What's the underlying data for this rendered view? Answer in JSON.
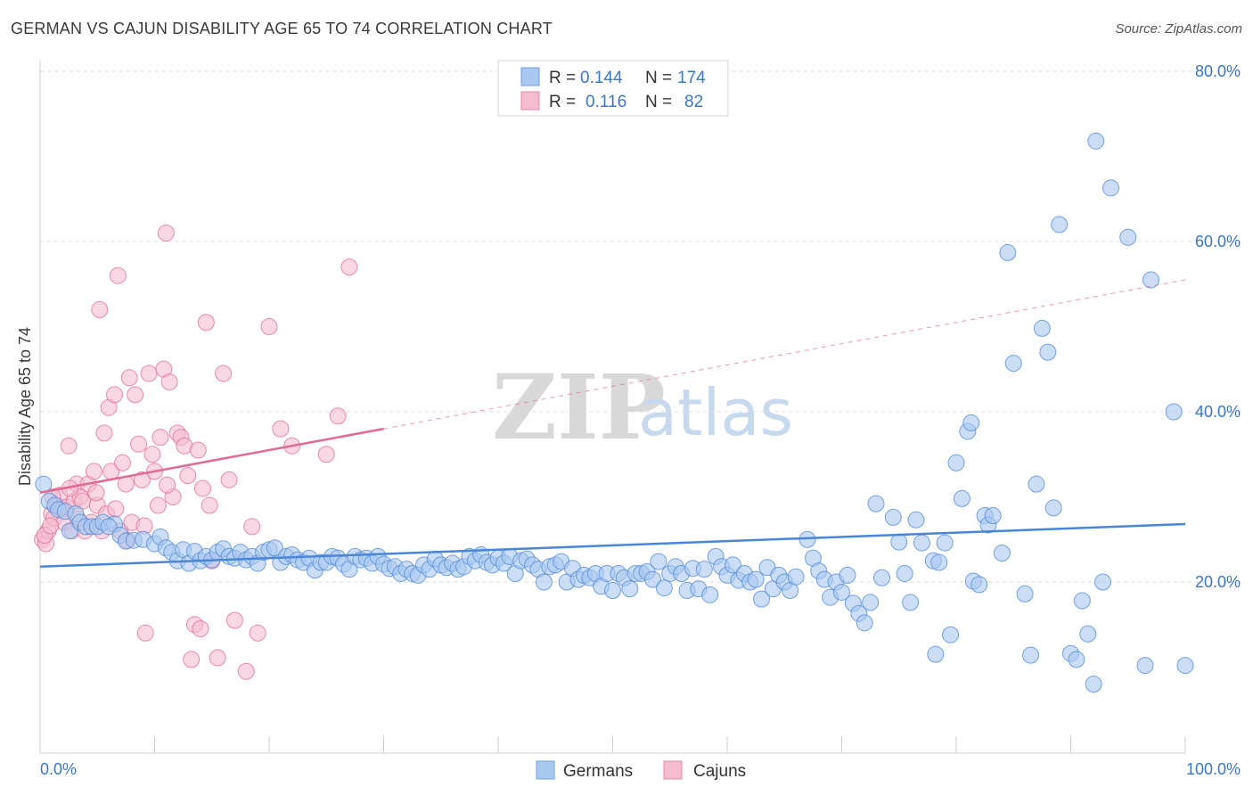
{
  "title": "GERMAN VS CAJUN DISABILITY AGE 65 TO 74 CORRELATION CHART",
  "source": "Source: ZipAtlas.com",
  "watermark": {
    "zip": "ZIP",
    "atlas": "atlas"
  },
  "legend": {
    "rows": [
      {
        "r_label": "R =",
        "r_value": "0.144",
        "n_label": "N =",
        "n_value": "174",
        "color": "#a9c8f0"
      },
      {
        "r_label": "R =",
        "r_value": "0.116",
        "n_label": "N =",
        "n_value": "82",
        "color": "#f5bcd0"
      }
    ]
  },
  "bottom_legend": [
    {
      "label": "Germans",
      "color": "#a9c8f0"
    },
    {
      "label": "Cajuns",
      "color": "#f5bcd0"
    }
  ],
  "chart_data": {
    "type": "scatter",
    "title": "GERMAN VS CAJUN DISABILITY AGE 65 TO 74 CORRELATION CHART",
    "xlabel": "",
    "ylabel": "Disability Age 65 to 74",
    "xlim": [
      0,
      100
    ],
    "ylim": [
      0,
      82
    ],
    "x_tick_labels": [
      "0.0%",
      "100.0%"
    ],
    "y_tick_labels": [
      "20.0%",
      "40.0%",
      "60.0%",
      "80.0%"
    ],
    "y_ticks": [
      20,
      40,
      60,
      80
    ],
    "grid": "horizontal dashed",
    "legend_position": "top-center",
    "series": [
      {
        "name": "Germans",
        "color": "#4a86d8",
        "fill": "#a9c8f0",
        "R": 0.144,
        "N": 174,
        "trend": {
          "x": [
            0,
            100
          ],
          "y": [
            21.8,
            26.8
          ],
          "dashed_from": null
        },
        "points": [
          [
            0.3,
            31.5
          ],
          [
            0.8,
            29.5
          ],
          [
            1.3,
            29
          ],
          [
            1.6,
            28.5
          ],
          [
            2.2,
            28.3
          ],
          [
            2.6,
            26
          ],
          [
            3.1,
            28
          ],
          [
            3.5,
            27
          ],
          [
            4,
            26.5
          ],
          [
            4.5,
            26.5
          ],
          [
            5,
            26.5
          ],
          [
            5.5,
            27
          ],
          [
            6.5,
            26.8
          ],
          [
            6,
            26.5
          ],
          [
            7,
            25.5
          ],
          [
            7.5,
            24.8
          ],
          [
            8.2,
            24.9
          ],
          [
            9,
            25
          ],
          [
            10,
            24.5
          ],
          [
            10.5,
            25.3
          ],
          [
            11,
            24
          ],
          [
            11.5,
            23.5
          ],
          [
            12,
            22.5
          ],
          [
            12.5,
            23.8
          ],
          [
            13,
            22.2
          ],
          [
            13.5,
            23.6
          ],
          [
            14,
            22.5
          ],
          [
            14.5,
            23
          ],
          [
            15,
            22.6
          ],
          [
            15.5,
            23.5
          ],
          [
            16,
            23.9
          ],
          [
            16.5,
            23
          ],
          [
            17,
            22.8
          ],
          [
            17.5,
            23.5
          ],
          [
            18,
            22.6
          ],
          [
            18.5,
            23
          ],
          [
            19,
            22.2
          ],
          [
            19.5,
            23.5
          ],
          [
            20,
            23.8
          ],
          [
            20.5,
            24
          ],
          [
            21,
            22.3
          ],
          [
            21.5,
            23
          ],
          [
            22,
            23.2
          ],
          [
            22.5,
            22.6
          ],
          [
            23,
            22.3
          ],
          [
            23.5,
            22.8
          ],
          [
            24,
            21.4
          ],
          [
            24.5,
            22.3
          ],
          [
            25,
            22.3
          ],
          [
            25.5,
            23
          ],
          [
            26,
            22.8
          ],
          [
            26.5,
            22.1
          ],
          [
            27,
            21.5
          ],
          [
            27.5,
            23
          ],
          [
            28,
            22.6
          ],
          [
            28.5,
            22.8
          ],
          [
            29,
            22.2
          ],
          [
            29.5,
            23
          ],
          [
            30,
            22.1
          ],
          [
            30.5,
            21.6
          ],
          [
            31,
            21.8
          ],
          [
            31.5,
            21
          ],
          [
            32,
            21.5
          ],
          [
            32.5,
            21
          ],
          [
            33,
            20.8
          ],
          [
            33.5,
            22
          ],
          [
            34,
            21.5
          ],
          [
            34.5,
            22.7
          ],
          [
            35,
            22
          ],
          [
            35.5,
            21.7
          ],
          [
            36,
            22.2
          ],
          [
            36.5,
            21.5
          ],
          [
            37,
            21.8
          ],
          [
            37.5,
            23
          ],
          [
            38,
            22.5
          ],
          [
            38.5,
            23.2
          ],
          [
            39,
            22.3
          ],
          [
            39.5,
            22
          ],
          [
            40,
            22.8
          ],
          [
            40.5,
            22.2
          ],
          [
            41,
            23
          ],
          [
            41.5,
            21
          ],
          [
            42,
            22.5
          ],
          [
            42.5,
            22.7
          ],
          [
            43,
            22
          ],
          [
            43.5,
            21.5
          ],
          [
            44,
            20
          ],
          [
            44.5,
            21.8
          ],
          [
            45,
            22
          ],
          [
            45.5,
            22.4
          ],
          [
            46,
            20
          ],
          [
            46.5,
            21.6
          ],
          [
            47,
            20.3
          ],
          [
            47.5,
            20.8
          ],
          [
            48,
            20.5
          ],
          [
            48.5,
            21
          ],
          [
            49,
            19.5
          ],
          [
            49.5,
            21
          ],
          [
            50,
            19
          ],
          [
            50.5,
            21
          ],
          [
            51,
            20.5
          ],
          [
            51.5,
            19.2
          ],
          [
            52,
            21
          ],
          [
            52.5,
            21
          ],
          [
            53,
            21.2
          ],
          [
            53.5,
            20.3
          ],
          [
            54,
            22.4
          ],
          [
            54.5,
            19.3
          ],
          [
            55,
            21
          ],
          [
            55.5,
            21.8
          ],
          [
            56,
            21
          ],
          [
            56.5,
            19
          ],
          [
            57,
            21.6
          ],
          [
            57.5,
            19.2
          ],
          [
            58,
            21.5
          ],
          [
            58.5,
            18.5
          ],
          [
            59,
            23
          ],
          [
            59.5,
            21.8
          ],
          [
            60,
            20.8
          ],
          [
            60.5,
            22
          ],
          [
            61,
            20.2
          ],
          [
            61.5,
            21
          ],
          [
            62,
            20
          ],
          [
            62.5,
            20.3
          ],
          [
            63,
            18
          ],
          [
            63.5,
            21.7
          ],
          [
            64,
            19.2
          ],
          [
            64.5,
            20.8
          ],
          [
            65,
            20
          ],
          [
            65.5,
            19
          ],
          [
            66,
            20.6
          ],
          [
            67,
            25
          ],
          [
            67.5,
            22.8
          ],
          [
            68,
            21.3
          ],
          [
            68.5,
            20.3
          ],
          [
            69,
            18.2
          ],
          [
            69.5,
            20
          ],
          [
            70,
            18.8
          ],
          [
            70.5,
            20.8
          ],
          [
            71,
            17.5
          ],
          [
            71.5,
            16.3
          ],
          [
            72,
            15.2
          ],
          [
            72.5,
            17.6
          ],
          [
            73,
            29.2
          ],
          [
            73.5,
            20.5
          ],
          [
            74.5,
            27.6
          ],
          [
            75,
            24.7
          ],
          [
            75.5,
            21
          ],
          [
            76,
            17.6
          ],
          [
            76.5,
            27.3
          ],
          [
            77,
            24.6
          ],
          [
            78,
            22.5
          ],
          [
            78.5,
            22.3
          ],
          [
            78.2,
            11.5
          ],
          [
            79,
            24.6
          ],
          [
            79.5,
            13.8
          ],
          [
            80,
            34
          ],
          [
            80.5,
            29.8
          ],
          [
            81,
            37.7
          ],
          [
            81.5,
            20.1
          ],
          [
            81.3,
            38.7
          ],
          [
            82,
            19.7
          ],
          [
            82.5,
            27.8
          ],
          [
            82.8,
            26.7
          ],
          [
            83.2,
            27.8
          ],
          [
            84,
            23.4
          ],
          [
            84.5,
            58.7
          ],
          [
            85,
            45.7
          ],
          [
            86,
            18.6
          ],
          [
            86.5,
            11.4
          ],
          [
            87,
            31.5
          ],
          [
            87.5,
            49.8
          ],
          [
            88,
            47
          ],
          [
            88.5,
            28.7
          ],
          [
            89,
            62
          ],
          [
            90,
            11.6
          ],
          [
            90.5,
            10.9
          ],
          [
            91,
            17.8
          ],
          [
            91.5,
            13.9
          ],
          [
            92,
            8
          ],
          [
            92.2,
            71.8
          ],
          [
            92.8,
            20
          ],
          [
            93.5,
            66.3
          ],
          [
            95,
            60.5
          ],
          [
            96.5,
            10.2
          ],
          [
            97,
            55.5
          ],
          [
            99,
            40
          ],
          [
            100,
            10.2
          ]
        ]
      },
      {
        "name": "Cajuns",
        "color": "#e36a93",
        "fill": "#f5bcd0",
        "R": 0.116,
        "N": 82,
        "trend": {
          "x": [
            0,
            30,
            100
          ],
          "y": [
            30.5,
            38,
            55.5
          ],
          "dashed_from": 30
        },
        "points": [
          [
            0.2,
            25
          ],
          [
            0.5,
            24.5
          ],
          [
            0.7,
            26
          ],
          [
            1,
            28
          ],
          [
            1.2,
            27.5
          ],
          [
            1.5,
            29
          ],
          [
            1.7,
            30.2
          ],
          [
            1.9,
            28.5
          ],
          [
            2.1,
            27
          ],
          [
            2.3,
            28.8
          ],
          [
            2.5,
            36
          ],
          [
            2.8,
            26
          ],
          [
            3,
            29.5
          ],
          [
            3.2,
            31.5
          ],
          [
            3.5,
            30
          ],
          [
            3.7,
            29.5
          ],
          [
            3.9,
            26
          ],
          [
            4.2,
            31.5
          ],
          [
            4.5,
            27
          ],
          [
            4.7,
            33
          ],
          [
            5,
            29
          ],
          [
            5.2,
            52
          ],
          [
            5.4,
            26
          ],
          [
            5.6,
            37.5
          ],
          [
            5.8,
            28
          ],
          [
            6,
            40.5
          ],
          [
            6.2,
            33
          ],
          [
            6.5,
            42
          ],
          [
            6.8,
            56
          ],
          [
            7,
            26
          ],
          [
            7.2,
            34
          ],
          [
            7.5,
            31.5
          ],
          [
            7.8,
            44
          ],
          [
            8,
            27
          ],
          [
            8.3,
            42
          ],
          [
            8.6,
            36.2
          ],
          [
            8.9,
            32
          ],
          [
            9.2,
            14
          ],
          [
            9.5,
            44.5
          ],
          [
            9.8,
            35
          ],
          [
            10,
            33
          ],
          [
            10.3,
            29
          ],
          [
            10.5,
            37
          ],
          [
            10.8,
            45
          ],
          [
            11,
            61
          ],
          [
            11.3,
            43.5
          ],
          [
            11.6,
            30
          ],
          [
            12,
            37.5
          ],
          [
            12.3,
            37
          ],
          [
            12.6,
            36
          ],
          [
            12.9,
            32.5
          ],
          [
            13.2,
            10.9
          ],
          [
            13.5,
            15
          ],
          [
            13.8,
            35.5
          ],
          [
            14,
            14.5
          ],
          [
            14.2,
            31
          ],
          [
            14.5,
            50.5
          ],
          [
            14.8,
            29
          ],
          [
            15,
            22.5
          ],
          [
            15.5,
            11.1
          ],
          [
            16,
            44.5
          ],
          [
            16.5,
            32
          ],
          [
            17,
            15.5
          ],
          [
            18,
            9.5
          ],
          [
            18.5,
            26.5
          ],
          [
            19,
            14
          ],
          [
            20,
            50
          ],
          [
            21,
            38
          ],
          [
            22,
            36
          ],
          [
            25,
            35
          ],
          [
            26,
            39.5
          ],
          [
            27,
            57
          ],
          [
            1.1,
            30
          ],
          [
            2.6,
            31
          ],
          [
            4.9,
            30.5
          ],
          [
            0.4,
            25.5
          ],
          [
            0.9,
            26.6
          ],
          [
            3.3,
            27.4
          ],
          [
            6.6,
            28.6
          ],
          [
            7.6,
            24.9
          ],
          [
            9.1,
            26.6
          ],
          [
            11.1,
            31.4
          ]
        ]
      }
    ]
  }
}
